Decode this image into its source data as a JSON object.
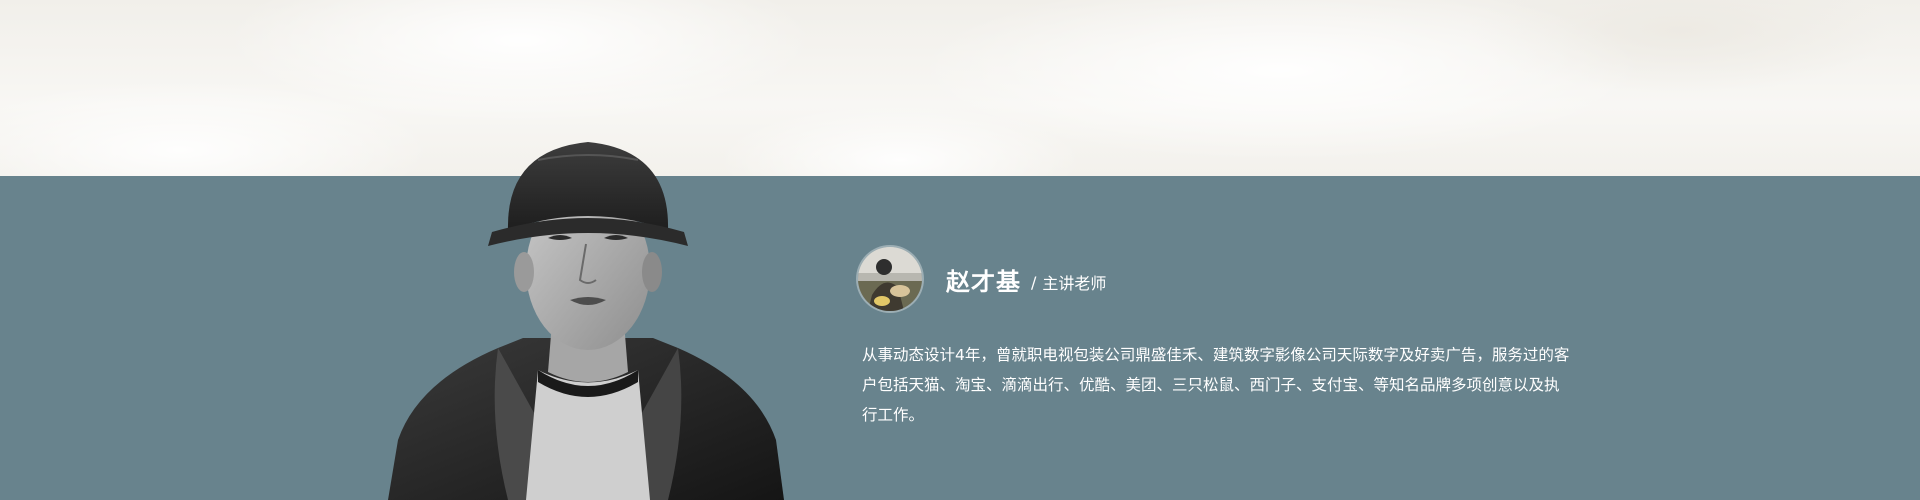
{
  "teacher": {
    "name": "赵才基",
    "divider": "/",
    "role": "主讲老师",
    "bio": "从事动态设计4年，曾就职电视包装公司鼎盛佳禾、建筑数字影像公司天际数字及好卖广告，服务过的客户包括天猫、淘宝、滴滴出行、优酷、美团、三只松鼠、西门子、支付宝、等知名品牌多项创意以及执行工作。"
  },
  "colors": {
    "band": "#68838d",
    "sky": "#f7f6f3",
    "text": "#ffffff"
  },
  "icons": {
    "portrait": "person-portrait-photo",
    "avatar": "teacher-avatar-photo"
  }
}
